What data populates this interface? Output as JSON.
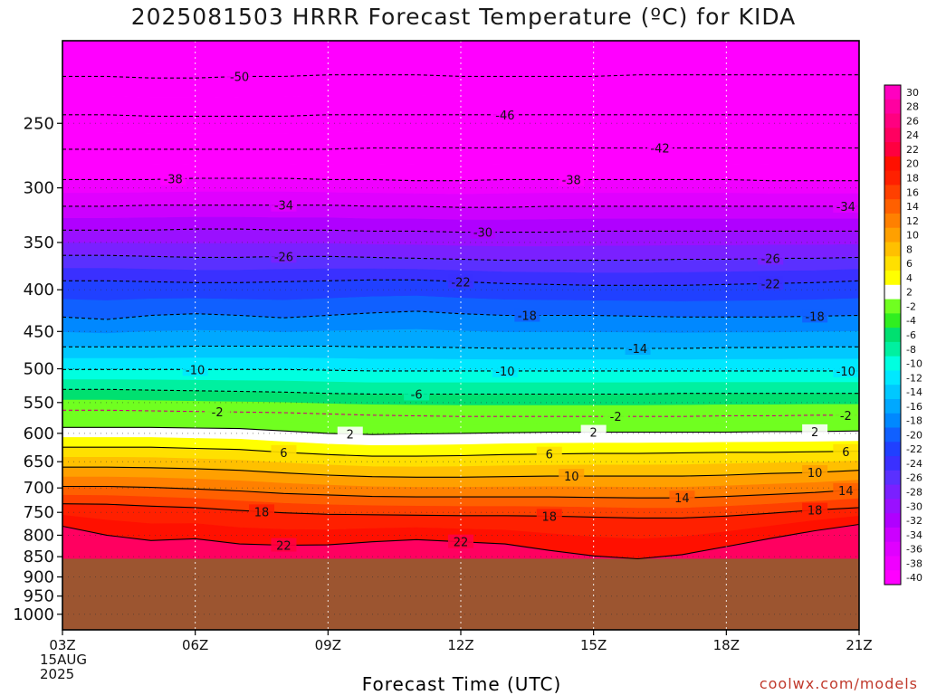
{
  "title": "2025081503 HRRR Forecast Temperature (ºC) for KIDA",
  "watermark": "coolwx.com/models",
  "colors": {
    "ground": "#9c5530"
  },
  "chart_data": {
    "type": "heatmap",
    "title": "2025081503 HRRR Forecast Temperature (ºC) for KIDA",
    "xlabel": "Forecast Time (UTC)",
    "ylabel": "",
    "x_ticks": [
      {
        "hour": 0,
        "label": "03Z",
        "sub": [
          "15AUG",
          "2025"
        ]
      },
      {
        "hour": 3,
        "label": "06Z"
      },
      {
        "hour": 6,
        "label": "09Z"
      },
      {
        "hour": 9,
        "label": "12Z"
      },
      {
        "hour": 12,
        "label": "15Z"
      },
      {
        "hour": 15,
        "label": "18Z"
      },
      {
        "hour": 18,
        "label": "21Z"
      }
    ],
    "y_ticks": [
      250,
      300,
      350,
      400,
      450,
      500,
      550,
      600,
      650,
      700,
      750,
      800,
      850,
      900,
      950,
      1000
    ],
    "y_scale": "log pressure (hPa), inverted",
    "ground_level_hpa": 855,
    "colorbar": {
      "levels": [
        -40,
        -38,
        -36,
        -34,
        -32,
        -30,
        -28,
        -26,
        -24,
        -22,
        -20,
        -18,
        -16,
        -14,
        -12,
        -10,
        -8,
        -6,
        -4,
        -2,
        2,
        4,
        6,
        8,
        10,
        12,
        14,
        16,
        18,
        20,
        22,
        24,
        26,
        28,
        30
      ],
      "colors": [
        "#ff00ff",
        "#f000ff",
        "#e000ff",
        "#cc00ff",
        "#b000ff",
        "#9a10ff",
        "#7a20ff",
        "#5a30ff",
        "#3a30ff",
        "#2040ff",
        "#1060ff",
        "#0088ff",
        "#00a8ff",
        "#00c8ff",
        "#00e8ff",
        "#00ffe0",
        "#00f0a0",
        "#00e070",
        "#30ee20",
        "#70ff20",
        "#ffffff",
        "#ffff00",
        "#ffe000",
        "#ffc000",
        "#ffa000",
        "#ff8000",
        "#ff6000",
        "#ff4000",
        "#ff2000",
        "#ff1000",
        "#ff0040",
        "#ff0060",
        "#ff0080",
        "#ff00a0",
        "#ff00c0"
      ]
    },
    "contours": [
      {
        "temp": -50,
        "label": "-50",
        "p": [
          219,
          219,
          220,
          220,
          219,
          219,
          218,
          218,
          218,
          219,
          219,
          219,
          219,
          218,
          218,
          218,
          218,
          218,
          218
        ]
      },
      {
        "temp": -46,
        "label": "-46",
        "p": [
          244,
          244,
          245,
          245,
          245,
          245,
          244,
          244,
          244,
          244,
          244,
          244,
          244,
          244,
          244,
          244,
          244,
          244,
          244
        ]
      },
      {
        "temp": -42,
        "label": "-42",
        "p": [
          269,
          269,
          269,
          269,
          269,
          269,
          269,
          268,
          268,
          268,
          268,
          268,
          268,
          268,
          268,
          268,
          268,
          268,
          268
        ]
      },
      {
        "temp": -38,
        "label": "-38",
        "p": [
          293,
          293,
          293,
          292,
          292,
          292,
          293,
          293,
          294,
          294,
          293,
          293,
          293,
          293,
          293,
          293,
          294,
          294,
          294
        ]
      },
      {
        "temp": -34,
        "label": "-34",
        "p": [
          316,
          316,
          315,
          315,
          315,
          315,
          315,
          316,
          316,
          317,
          317,
          316,
          316,
          316,
          316,
          316,
          316,
          316,
          316
        ]
      },
      {
        "temp": -30,
        "label": "-30",
        "p": [
          338,
          338,
          338,
          337,
          337,
          338,
          338,
          339,
          339,
          340,
          340,
          340,
          339,
          339,
          339,
          339,
          339,
          339,
          339
        ]
      },
      {
        "temp": -26,
        "label": "-26",
        "p": [
          363,
          363,
          364,
          365,
          365,
          364,
          364,
          365,
          366,
          367,
          368,
          368,
          368,
          368,
          367,
          367,
          366,
          366,
          365
        ]
      },
      {
        "temp": -22,
        "label": "-22",
        "p": [
          390,
          390,
          391,
          392,
          392,
          391,
          390,
          389,
          389,
          391,
          393,
          394,
          395,
          395,
          395,
          394,
          393,
          392,
          390
        ]
      },
      {
        "temp": -18,
        "label": "-18",
        "p": [
          432,
          435,
          430,
          428,
          430,
          433,
          430,
          427,
          425,
          428,
          430,
          430,
          430,
          431,
          432,
          432,
          432,
          431,
          430
        ]
      },
      {
        "temp": -14,
        "label": "-14",
        "p": [
          470,
          470,
          470,
          469,
          469,
          469,
          469,
          470,
          470,
          471,
          472,
          472,
          472,
          472,
          472,
          471,
          471,
          470,
          470
        ]
      },
      {
        "temp": -10,
        "label": "-10",
        "p": [
          501,
          501,
          501,
          501,
          501,
          501,
          502,
          503,
          503,
          503,
          503,
          503,
          503,
          503,
          503,
          503,
          503,
          503,
          503
        ]
      },
      {
        "temp": -6,
        "label": "-6",
        "p": [
          530,
          530,
          531,
          532,
          533,
          534,
          536,
          537,
          537,
          537,
          537,
          537,
          537,
          537,
          536,
          536,
          536,
          536,
          536
        ]
      },
      {
        "temp": -2,
        "label": "-2",
        "p": [
          562,
          562,
          563,
          564,
          565,
          566,
          568,
          570,
          571,
          572,
          572,
          572,
          572,
          572,
          572,
          571,
          571,
          570,
          570
        ]
      },
      {
        "temp": 2,
        "label": "2",
        "p": [
          590,
          590,
          590,
          591,
          592,
          596,
          600,
          602,
          601,
          600,
          599,
          598,
          598,
          598,
          598,
          598,
          597,
          597,
          596
        ]
      },
      {
        "temp": 6,
        "label": "6",
        "p": [
          624,
          624,
          624,
          626,
          628,
          633,
          637,
          640,
          640,
          639,
          637,
          636,
          635,
          635,
          634,
          633,
          633,
          632,
          631
        ]
      },
      {
        "temp": 10,
        "label": "10",
        "p": [
          660,
          660,
          661,
          663,
          666,
          671,
          675,
          678,
          679,
          679,
          678,
          677,
          677,
          677,
          677,
          675,
          672,
          670,
          666
        ]
      },
      {
        "temp": 14,
        "label": "14",
        "p": [
          697,
          697,
          699,
          702,
          706,
          711,
          714,
          717,
          718,
          718,
          718,
          718,
          719,
          720,
          720,
          717,
          713,
          709,
          703
        ]
      },
      {
        "temp": 18,
        "label": "18",
        "p": [
          732,
          733,
          737,
          740,
          746,
          751,
          754,
          755,
          756,
          757,
          757,
          758,
          760,
          762,
          762,
          758,
          752,
          745,
          740
        ]
      },
      {
        "temp": 22,
        "label": "22",
        "p": [
          780,
          800,
          812,
          808,
          820,
          823,
          822,
          815,
          810,
          815,
          820,
          835,
          848,
          855,
          845,
          826,
          807,
          790,
          776
        ]
      }
    ]
  }
}
